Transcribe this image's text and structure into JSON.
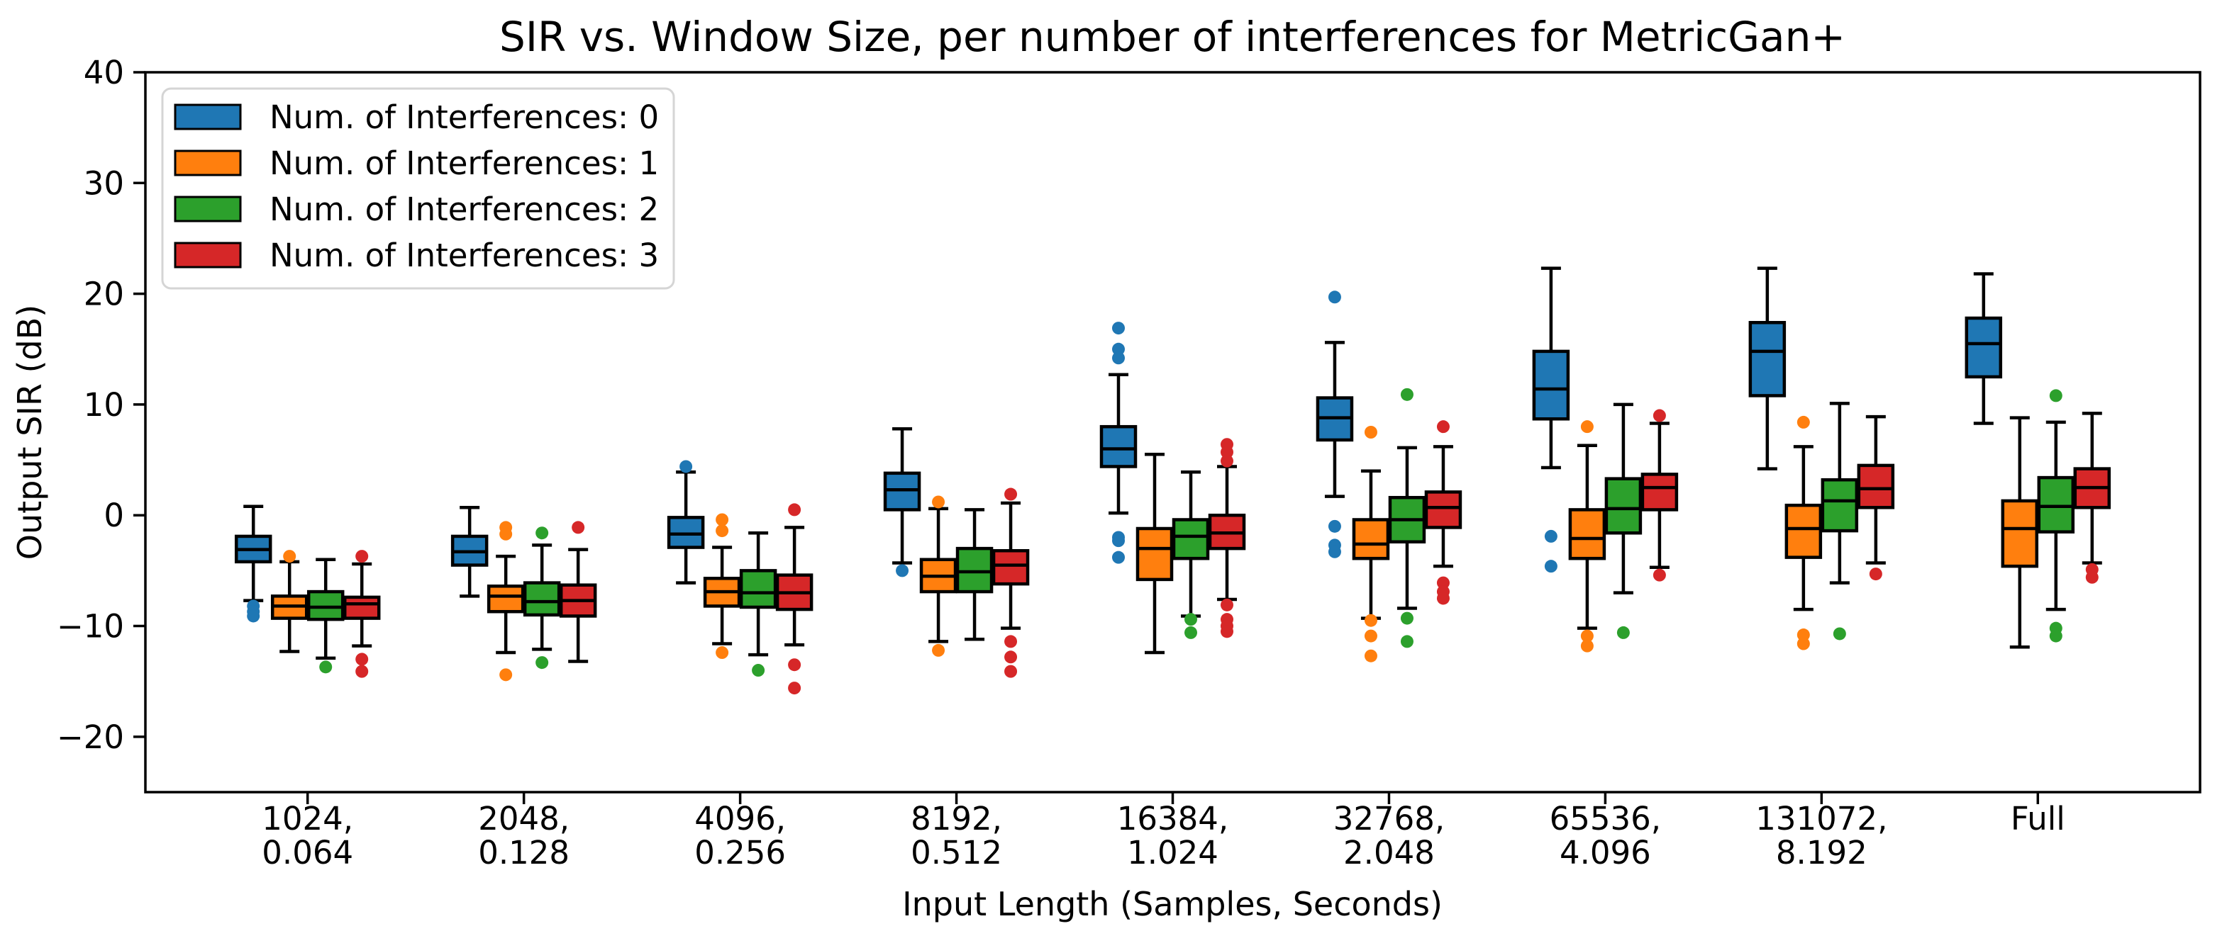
{
  "figure": {
    "background": "#ffffff"
  },
  "chart_data": {
    "type": "boxplot",
    "title": "SIR vs. Window Size, per number of interferences for MetricGan+",
    "xlabel": "Input Length (Samples, Seconds)",
    "ylabel": "Output SIR (dB)",
    "ylim": [
      -25,
      40
    ],
    "grid": false,
    "legend_position": "upper-left",
    "yticks": [
      {
        "value": 40,
        "label": "40"
      },
      {
        "value": 30,
        "label": "30"
      },
      {
        "value": 20,
        "label": "20"
      },
      {
        "value": 10,
        "label": "10"
      },
      {
        "value": 0,
        "label": "0"
      },
      {
        "value": -10,
        "label": "−10"
      },
      {
        "value": -20,
        "label": "−20"
      }
    ],
    "categories": [
      [
        "1024,",
        "0.064"
      ],
      [
        "2048,",
        "0.128"
      ],
      [
        "4096,",
        "0.256"
      ],
      [
        "8192,",
        "0.512"
      ],
      [
        "16384,",
        "1.024"
      ],
      [
        "32768,",
        "2.048"
      ],
      [
        "65536,",
        "4.096"
      ],
      [
        "131072,",
        "8.192"
      ],
      [
        "Full"
      ]
    ],
    "series": [
      {
        "name": "Num. of Interferences: 0",
        "color": "#1f77b4",
        "boxes": [
          {
            "whislo": -7.7,
            "q1": -4.2,
            "med": -3.1,
            "q3": -1.9,
            "whishi": 0.8,
            "fliers": [
              -8.2,
              -8.7,
              -9.1
            ]
          },
          {
            "whislo": -7.3,
            "q1": -4.5,
            "med": -3.3,
            "q3": -1.9,
            "whishi": 0.7,
            "fliers": []
          },
          {
            "whislo": -6.1,
            "q1": -2.9,
            "med": -1.7,
            "q3": -0.2,
            "whishi": 3.9,
            "fliers": [
              4.4
            ]
          },
          {
            "whislo": -4.3,
            "q1": 0.5,
            "med": 2.3,
            "q3": 3.8,
            "whishi": 7.8,
            "fliers": [
              -5.0
            ]
          },
          {
            "whislo": 0.2,
            "q1": 4.4,
            "med": 6.0,
            "q3": 8.0,
            "whishi": 12.7,
            "fliers": [
              16.9,
              15.0,
              14.2,
              -2.0,
              -2.3,
              -3.8
            ]
          },
          {
            "whislo": 1.7,
            "q1": 6.8,
            "med": 8.8,
            "q3": 10.6,
            "whishi": 15.6,
            "fliers": [
              19.7,
              -1.0,
              -2.7,
              -3.3
            ]
          },
          {
            "whislo": 4.3,
            "q1": 8.7,
            "med": 11.4,
            "q3": 14.8,
            "whishi": 22.3,
            "fliers": [
              -1.9,
              -4.6
            ]
          },
          {
            "whislo": 4.2,
            "q1": 10.8,
            "med": 14.8,
            "q3": 17.4,
            "whishi": 22.3,
            "fliers": []
          },
          {
            "whislo": 8.3,
            "q1": 12.5,
            "med": 15.5,
            "q3": 17.8,
            "whishi": 21.8,
            "fliers": []
          }
        ]
      },
      {
        "name": "Num. of Interferences: 1",
        "color": "#ff7f0e",
        "boxes": [
          {
            "whislo": -12.3,
            "q1": -9.3,
            "med": -8.2,
            "q3": -7.3,
            "whishi": -4.2,
            "fliers": [
              -3.7
            ]
          },
          {
            "whislo": -12.4,
            "q1": -8.7,
            "med": -7.3,
            "q3": -6.4,
            "whishi": -3.7,
            "fliers": [
              -1.1,
              -1.7,
              -14.4
            ]
          },
          {
            "whislo": -11.6,
            "q1": -8.2,
            "med": -6.9,
            "q3": -5.7,
            "whishi": -2.9,
            "fliers": [
              -0.4,
              -1.4,
              -12.4
            ]
          },
          {
            "whislo": -11.4,
            "q1": -6.9,
            "med": -5.5,
            "q3": -4.0,
            "whishi": 0.6,
            "fliers": [
              1.2,
              -12.2
            ]
          },
          {
            "whislo": -12.4,
            "q1": -5.8,
            "med": -3.0,
            "q3": -1.2,
            "whishi": 5.5,
            "fliers": []
          },
          {
            "whislo": -9.3,
            "q1": -3.9,
            "med": -2.6,
            "q3": -0.4,
            "whishi": 4.0,
            "fliers": [
              7.5,
              -9.5,
              -10.9,
              -12.7
            ]
          },
          {
            "whislo": -10.2,
            "q1": -3.9,
            "med": -2.1,
            "q3": 0.5,
            "whishi": 6.3,
            "fliers": [
              8.0,
              -10.9,
              -11.8
            ]
          },
          {
            "whislo": -8.5,
            "q1": -3.8,
            "med": -1.2,
            "q3": 0.9,
            "whishi": 6.2,
            "fliers": [
              8.4,
              -10.8,
              -11.6
            ]
          },
          {
            "whislo": -11.9,
            "q1": -4.6,
            "med": -1.2,
            "q3": 1.3,
            "whishi": 8.8,
            "fliers": []
          }
        ]
      },
      {
        "name": "Num. of Interferences: 2",
        "color": "#2ca02c",
        "boxes": [
          {
            "whislo": -12.9,
            "q1": -9.4,
            "med": -8.3,
            "q3": -6.9,
            "whishi": -4.0,
            "fliers": [
              -13.7
            ]
          },
          {
            "whislo": -12.1,
            "q1": -9.0,
            "med": -7.8,
            "q3": -6.1,
            "whishi": -2.7,
            "fliers": [
              -1.6,
              -13.3
            ]
          },
          {
            "whislo": -12.6,
            "q1": -8.3,
            "med": -7.0,
            "q3": -5.0,
            "whishi": -1.6,
            "fliers": [
              -14.0
            ]
          },
          {
            "whislo": -11.2,
            "q1": -6.9,
            "med": -5.1,
            "q3": -3.0,
            "whishi": 0.5,
            "fliers": []
          },
          {
            "whislo": -9.1,
            "q1": -3.9,
            "med": -1.9,
            "q3": -0.4,
            "whishi": 3.9,
            "fliers": [
              -9.4,
              -10.6
            ]
          },
          {
            "whislo": -8.4,
            "q1": -2.4,
            "med": -0.4,
            "q3": 1.6,
            "whishi": 6.1,
            "fliers": [
              10.9,
              -9.3,
              -11.4
            ]
          },
          {
            "whislo": -7.0,
            "q1": -1.6,
            "med": 0.6,
            "q3": 3.3,
            "whishi": 10.0,
            "fliers": [
              -10.6
            ]
          },
          {
            "whislo": -6.1,
            "q1": -1.4,
            "med": 1.3,
            "q3": 3.2,
            "whishi": 10.1,
            "fliers": [
              -10.7
            ]
          },
          {
            "whislo": -8.5,
            "q1": -1.5,
            "med": 0.8,
            "q3": 3.4,
            "whishi": 8.4,
            "fliers": [
              10.8,
              -10.2,
              -10.9
            ]
          }
        ]
      },
      {
        "name": "Num. of Interferences: 3",
        "color": "#d62728",
        "boxes": [
          {
            "whislo": -11.8,
            "q1": -9.3,
            "med": -8.0,
            "q3": -7.4,
            "whishi": -4.4,
            "fliers": [
              -3.7,
              -13.0,
              -14.1
            ]
          },
          {
            "whislo": -13.2,
            "q1": -9.1,
            "med": -7.7,
            "q3": -6.3,
            "whishi": -3.1,
            "fliers": [
              -1.1
            ]
          },
          {
            "whislo": -11.7,
            "q1": -8.5,
            "med": -7.0,
            "q3": -5.4,
            "whishi": -1.1,
            "fliers": [
              0.5,
              -13.5,
              -15.6
            ]
          },
          {
            "whislo": -10.2,
            "q1": -6.2,
            "med": -4.5,
            "q3": -3.2,
            "whishi": 1.1,
            "fliers": [
              1.9,
              -11.4,
              -12.8,
              -14.1
            ]
          },
          {
            "whislo": -7.6,
            "q1": -3.0,
            "med": -1.6,
            "q3": 0.0,
            "whishi": 4.4,
            "fliers": [
              6.4,
              5.7,
              4.9,
              -8.1,
              -9.4,
              -10.0,
              -10.5
            ]
          },
          {
            "whislo": -4.6,
            "q1": -1.1,
            "med": 0.7,
            "q3": 2.1,
            "whishi": 6.2,
            "fliers": [
              8.0,
              -6.1,
              -6.9,
              -7.5
            ]
          },
          {
            "whislo": -4.7,
            "q1": 0.5,
            "med": 2.5,
            "q3": 3.7,
            "whishi": 8.3,
            "fliers": [
              9.0,
              -5.4
            ]
          },
          {
            "whislo": -4.3,
            "q1": 0.7,
            "med": 2.4,
            "q3": 4.5,
            "whishi": 8.9,
            "fliers": [
              -5.3
            ]
          },
          {
            "whislo": -4.3,
            "q1": 0.7,
            "med": 2.5,
            "q3": 4.2,
            "whishi": 9.2,
            "fliers": [
              -4.9,
              -5.6
            ]
          }
        ]
      }
    ]
  }
}
